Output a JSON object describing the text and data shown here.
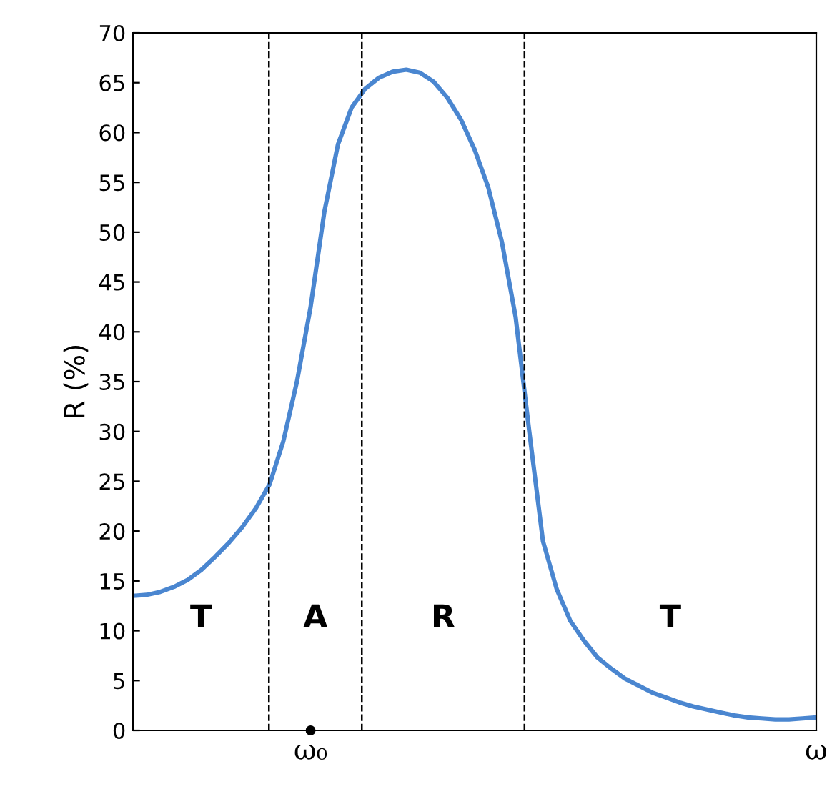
{
  "chart_data": {
    "type": "line",
    "ylabel": "R (%)",
    "categories": [
      null,
      null,
      null,
      null,
      null,
      null,
      null,
      null,
      null,
      null,
      null,
      null,
      null,
      "ω₀",
      null,
      null,
      null,
      null,
      null,
      null,
      null,
      null,
      null,
      null,
      null,
      null,
      null,
      null,
      null,
      null,
      null,
      null,
      null,
      null,
      null,
      null,
      null,
      null,
      null,
      null,
      null,
      null,
      null,
      null,
      null,
      null,
      null,
      null,
      null,
      null,
      "ω"
    ],
    "series": [
      {
        "color": "#4a86d0",
        "values": [
          13.5,
          13.6,
          13.9,
          14.4,
          15.1,
          16.1,
          17.4,
          18.8,
          20.4,
          22.3,
          24.7,
          29,
          35,
          42.5,
          52,
          58.8,
          62.5,
          64.4,
          65.5,
          66.1,
          66.3,
          66,
          65.1,
          63.5,
          61.3,
          58.3,
          54.5,
          49,
          41.5,
          30,
          19,
          14.2,
          11,
          9,
          7.3,
          6.2,
          5.2,
          4.5,
          3.8,
          3.3,
          2.8,
          2.4,
          2.1,
          1.8,
          1.5,
          1.3,
          1.2,
          1.1,
          1.1,
          1.2,
          1.3
        ]
      }
    ],
    "ylim": [
      0,
      70
    ],
    "yticks": [
      0,
      5,
      10,
      15,
      20,
      25,
      30,
      35,
      40,
      45,
      50,
      55,
      60,
      65,
      70
    ],
    "annotations": [
      "T",
      "A",
      "R",
      "T"
    ],
    "grid": false,
    "legend": false,
    "marker": "none",
    "line_style": "solid"
  }
}
